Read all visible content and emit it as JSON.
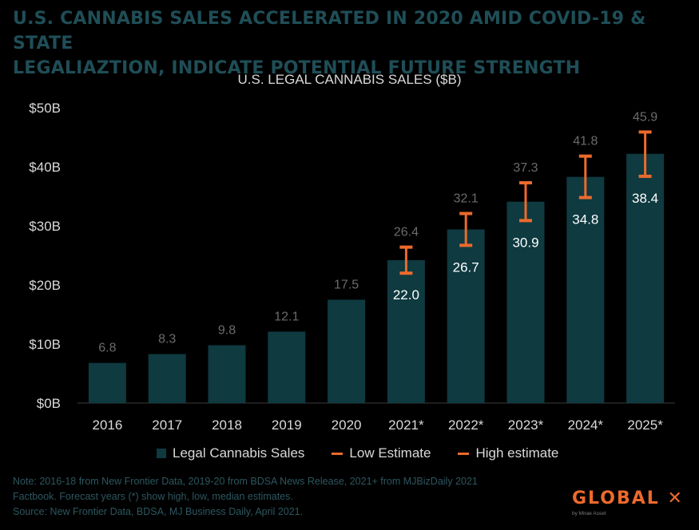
{
  "title_line1": "U.S. CANNABIS SALES ACCELERATED IN 2020 AMID COVID-19 & STATE",
  "title_line2": "LEGALIAZTION, INDICATE POTENTIAL FUTURE STRENGTH",
  "colors": {
    "background": "#000000",
    "title": "#1f4e57",
    "bar": "#0e3a40",
    "estimate": "#ec6a2c",
    "text": "#d9d9d9",
    "value_above": "#6b6b6b",
    "note": "#2c5760"
  },
  "legend": {
    "sales": "Legal Cannabis Sales",
    "low": "Low Estimate",
    "high": "High estimate"
  },
  "notes": [
    "Note: 2016-18 from New Frontier Data, 2019-20 from BDSA News Release, 2021+ from MJBizDaily 2021",
    "Factbook. Forecast years (*) show high, low, median estimates.",
    "Source: New Frontier Data, BDSA, MJ Business Daily, April 2021."
  ],
  "logo": {
    "name": "GLOBAL ✕",
    "tagline": "by Mirae Asset"
  },
  "chart_data": {
    "type": "bar",
    "title": "U.S. LEGAL CANNABIS SALES ($B)",
    "categories": [
      "2016",
      "2017",
      "2018",
      "2019",
      "2020",
      "2021*",
      "2022*",
      "2023*",
      "2024*",
      "2025*"
    ],
    "series": [
      {
        "name": "Legal Cannabis Sales",
        "values": [
          6.8,
          8.3,
          9.8,
          12.1,
          17.5,
          24.2,
          29.4,
          34.1,
          38.3,
          42.2
        ]
      },
      {
        "name": "Low Estimate",
        "values": [
          null,
          null,
          null,
          null,
          null,
          22.0,
          26.7,
          30.9,
          34.8,
          38.4
        ]
      },
      {
        "name": "High estimate",
        "values": [
          null,
          null,
          null,
          null,
          null,
          26.4,
          32.1,
          37.3,
          41.8,
          45.9
        ]
      }
    ],
    "value_labels_above": [
      "6.8",
      "8.3",
      "9.8",
      "12.1",
      "17.5",
      "26.4",
      "32.1",
      "37.3",
      "41.8",
      "45.9"
    ],
    "value_labels_inside": [
      null,
      null,
      null,
      null,
      null,
      "22.0",
      "26.7",
      "30.9",
      "34.8",
      "38.4"
    ],
    "yticks": [
      0,
      10,
      20,
      30,
      40,
      50
    ],
    "ytick_labels": [
      "$0B",
      "$10B",
      "$20B",
      "$30B",
      "$40B",
      "$50B"
    ],
    "ylim": [
      0,
      50
    ],
    "grid": false,
    "legend_position": "bottom"
  }
}
